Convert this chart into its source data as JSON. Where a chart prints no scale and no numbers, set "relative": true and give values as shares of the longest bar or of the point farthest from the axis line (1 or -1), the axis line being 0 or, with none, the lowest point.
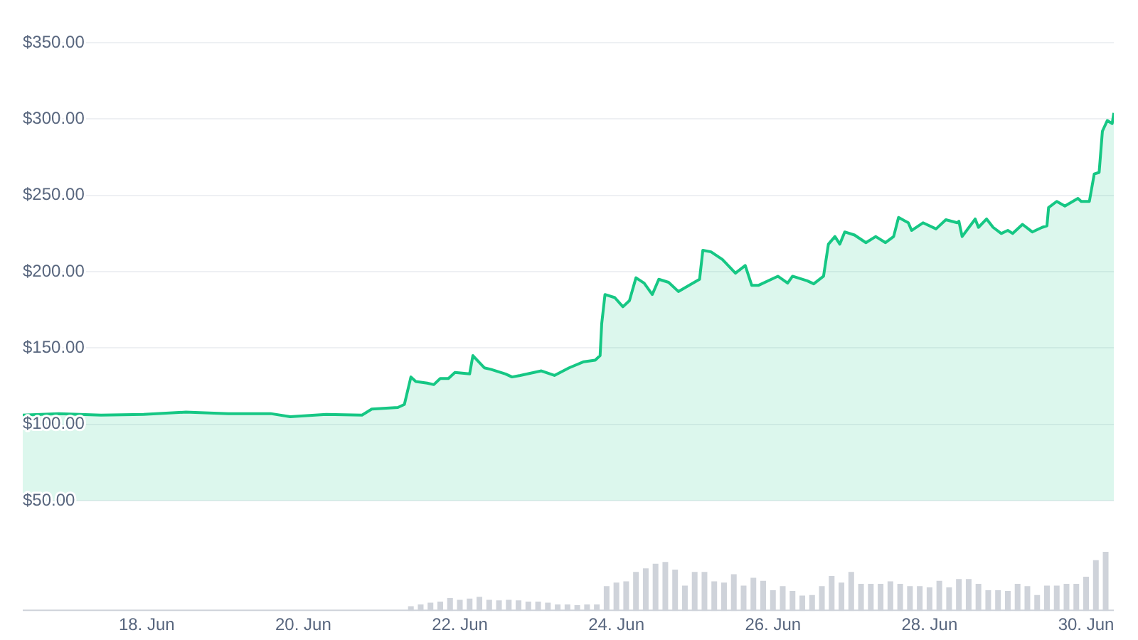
{
  "chart_data": [
    {
      "type": "area",
      "x": [
        "--06-16T10:00",
        "--06-16T21:00",
        "--06-17T10:00",
        "--06-17T23:00",
        "--06-18T12:00",
        "--06-19T01:00",
        "--06-19T14:00",
        "--06-19T20:00",
        "--06-20T07:00",
        "--06-20T18:00",
        "--06-20T21:00",
        "--06-21T05:00",
        "--06-21T07:00",
        "--06-21T09:00",
        "--06-21T10:30",
        "--06-21T14:00",
        "--06-21T16:00",
        "--06-21T18:00",
        "--06-21T20:30",
        "--06-21T22:30",
        "--06-22T03:00",
        "--06-22T04:00",
        "--06-22T07:30",
        "--06-22T09:30",
        "--06-22T14:00",
        "--06-22T16:00",
        "--06-22T18:30",
        "--06-23T01:00",
        "--06-23T05:00",
        "--06-23T09:30",
        "--06-23T14:00",
        "--06-23T17:30",
        "--06-23T19:00",
        "--06-23T19:30",
        "--06-23T20:30",
        "--06-23T23:30",
        "--06-24T02:00",
        "--06-24T04:00",
        "--06-24T06:00",
        "--06-24T08:30",
        "--06-24T11:00",
        "--06-24T13:00",
        "--06-24T16:00",
        "--06-24T19:00",
        "--06-24T23:30",
        "--06-25T01:30",
        "--06-25T02:30",
        "--06-25T05:00",
        "--06-25T08:30",
        "--06-25T12:30",
        "--06-25T15:30",
        "--06-25T17:30",
        "--06-25T19:30",
        "--06-26T01:30",
        "--06-26T04:30",
        "--06-26T06:00",
        "--06-26T10:30",
        "--06-26T12:30",
        "--06-26T15:30",
        "--06-26T17:00",
        "--06-26T19:00",
        "--06-26T20:30",
        "--06-26T22:00",
        "--06-27T01:00",
        "--06-27T04:30",
        "--06-27T07:30",
        "--06-27T10:30",
        "--06-27T13:00",
        "--06-27T14:30",
        "--06-27T17:30",
        "--06-27T18:30",
        "--06-27T22:00",
        "--06-28T02:00",
        "--06-28T05:00",
        "--06-28T08:30",
        "--06-28T09:00",
        "--06-28T10:00",
        "--06-28T14:00",
        "--06-28T15:00",
        "--06-28T17:30",
        "--06-28T19:30",
        "--06-28T22:00",
        "--06-29T00:00",
        "--06-29T01:30",
        "--06-29T04:30",
        "--06-29T07:30",
        "--06-29T10:30",
        "--06-29T12:00",
        "--06-29T12:30",
        "--06-29T15:00",
        "--06-29T17:30",
        "--06-29T21:30",
        "--06-29T22:30",
        "--06-30T01:00",
        "--06-30T02:30",
        "--06-30T04:00",
        "--06-30T05:00",
        "--06-30T06:30",
        "--06-30T08:00",
        "--06-30T08:30"
      ],
      "series": [
        {
          "color": "#16c784",
          "values": [
            106,
            107,
            106,
            106.5,
            108,
            107,
            107,
            105,
            106.5,
            106,
            110,
            111,
            113,
            131,
            128,
            127,
            126,
            130,
            130,
            134,
            133,
            145,
            137,
            136,
            133,
            131,
            132,
            135,
            132,
            137,
            141,
            142,
            145,
            166,
            185,
            183,
            177,
            181,
            196,
            192.5,
            185,
            195,
            193,
            187,
            192.5,
            195,
            214,
            213,
            208,
            199,
            204,
            191,
            191,
            197,
            192.5,
            197,
            194,
            192,
            197,
            218,
            223,
            218,
            226,
            224,
            219,
            223,
            219,
            223,
            235.5,
            232,
            227,
            232,
            228,
            234,
            232,
            233,
            223,
            234.5,
            229,
            234.5,
            229,
            225,
            227,
            225,
            231,
            226,
            229,
            230,
            242,
            246,
            243,
            248,
            246,
            246,
            264,
            265,
            292,
            299,
            297,
            304
          ]
        }
      ],
      "xlim": [
        "--06-16T10:00",
        "--06-30T08:30"
      ],
      "ylim": [
        50,
        350
      ],
      "yticks": [
        {
          "value": 50,
          "label": "$50.00"
        },
        {
          "value": 100,
          "label": "$100.00"
        },
        {
          "value": 150,
          "label": "$150.00"
        },
        {
          "value": 200,
          "label": "$200.00"
        },
        {
          "value": 250,
          "label": "$250.00"
        },
        {
          "value": 300,
          "label": "$300.00"
        },
        {
          "value": 350,
          "label": "$350.00"
        }
      ],
      "tick_labels": "y",
      "grid": "y",
      "marker": "none"
    },
    {
      "type": "bar",
      "relative": true,
      "color": "#cfd3da",
      "x": [
        "--06-21T09:00",
        "--06-21T12:00",
        "--06-21T15:00",
        "--06-21T18:00",
        "--06-21T21:00",
        "--06-22T00:00",
        "--06-22T03:00",
        "--06-22T06:00",
        "--06-22T09:00",
        "--06-22T12:00",
        "--06-22T15:00",
        "--06-22T18:00",
        "--06-22T21:00",
        "--06-23T00:00",
        "--06-23T03:00",
        "--06-23T06:00",
        "--06-23T09:00",
        "--06-23T12:00",
        "--06-23T15:00",
        "--06-23T18:00",
        "--06-23T21:00",
        "--06-24T00:00",
        "--06-24T03:00",
        "--06-24T06:00",
        "--06-24T09:00",
        "--06-24T12:00",
        "--06-24T15:00",
        "--06-24T18:00",
        "--06-24T21:00",
        "--06-25T00:00",
        "--06-25T03:00",
        "--06-25T06:00",
        "--06-25T09:00",
        "--06-25T12:00",
        "--06-25T15:00",
        "--06-25T18:00",
        "--06-25T21:00",
        "--06-26T00:00",
        "--06-26T03:00",
        "--06-26T06:00",
        "--06-26T09:00",
        "--06-26T12:00",
        "--06-26T15:00",
        "--06-26T18:00",
        "--06-26T21:00",
        "--06-27T00:00",
        "--06-27T03:00",
        "--06-27T06:00",
        "--06-27T09:00",
        "--06-27T12:00",
        "--06-27T15:00",
        "--06-27T18:00",
        "--06-27T21:00",
        "--06-28T00:00",
        "--06-28T03:00",
        "--06-28T06:00",
        "--06-28T09:00",
        "--06-28T12:00",
        "--06-28T15:00",
        "--06-28T18:00",
        "--06-28T21:00",
        "--06-29T00:00",
        "--06-29T03:00",
        "--06-29T06:00",
        "--06-29T09:00",
        "--06-29T12:00",
        "--06-29T15:00",
        "--06-29T18:00",
        "--06-29T21:00",
        "--06-30T00:00",
        "--06-30T03:00",
        "--06-30T06:00"
      ],
      "values": [
        0.08,
        0.11,
        0.14,
        0.16,
        0.22,
        0.19,
        0.21,
        0.24,
        0.19,
        0.18,
        0.19,
        0.18,
        0.16,
        0.16,
        0.14,
        0.11,
        0.11,
        0.1,
        0.11,
        0.11,
        0.42,
        0.48,
        0.5,
        0.66,
        0.72,
        0.8,
        0.83,
        0.7,
        0.43,
        0.66,
        0.66,
        0.5,
        0.48,
        0.62,
        0.43,
        0.56,
        0.51,
        0.35,
        0.42,
        0.34,
        0.26,
        0.27,
        0.42,
        0.59,
        0.48,
        0.66,
        0.46,
        0.46,
        0.46,
        0.5,
        0.46,
        0.42,
        0.42,
        0.4,
        0.51,
        0.4,
        0.54,
        0.54,
        0.46,
        0.35,
        0.35,
        0.34,
        0.46,
        0.42,
        0.27,
        0.43,
        0.43,
        0.46,
        0.46,
        0.58,
        0.86,
        1
      ],
      "xlim": [
        "--06-16T10:00",
        "--06-30T08:30"
      ],
      "xticks": [
        {
          "value": "--06-18",
          "label": "18. Jun"
        },
        {
          "value": "--06-20",
          "label": "20. Jun"
        },
        {
          "value": "--06-22",
          "label": "22. Jun"
        },
        {
          "value": "--06-24",
          "label": "24. Jun"
        },
        {
          "value": "--06-26",
          "label": "26. Jun"
        },
        {
          "value": "--06-28",
          "label": "28. Jun"
        },
        {
          "value": "--06-30",
          "label": "30. Jun"
        }
      ],
      "tick_labels": "x"
    }
  ]
}
